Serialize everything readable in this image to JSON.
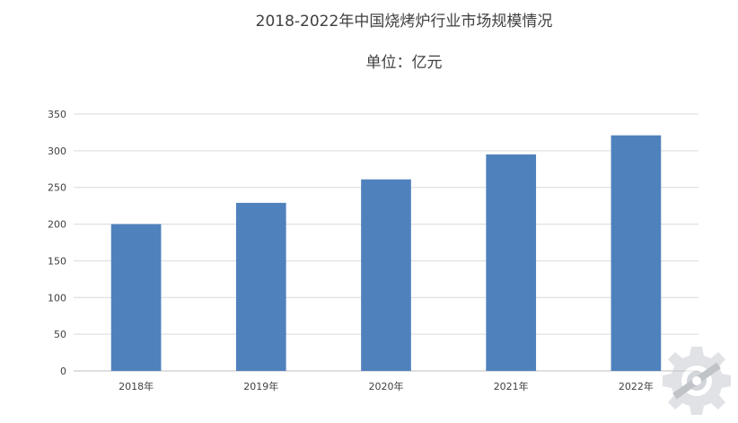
{
  "chart_data": {
    "type": "bar",
    "title": "2018-2022年中国烧烤炉行业市场规模情况",
    "subtitle": "单位：亿元",
    "categories": [
      "2018年",
      "2019年",
      "2020年",
      "2021年",
      "2022年"
    ],
    "values": [
      200,
      229,
      261,
      295,
      321
    ],
    "ylim": [
      0,
      350
    ],
    "yticks": [
      0,
      50,
      100,
      150,
      200,
      250,
      300,
      350
    ],
    "grid": true,
    "legend": "none",
    "bar_color": "#4f81bd"
  },
  "watermark": {
    "icon": "gear-logo-icon"
  }
}
